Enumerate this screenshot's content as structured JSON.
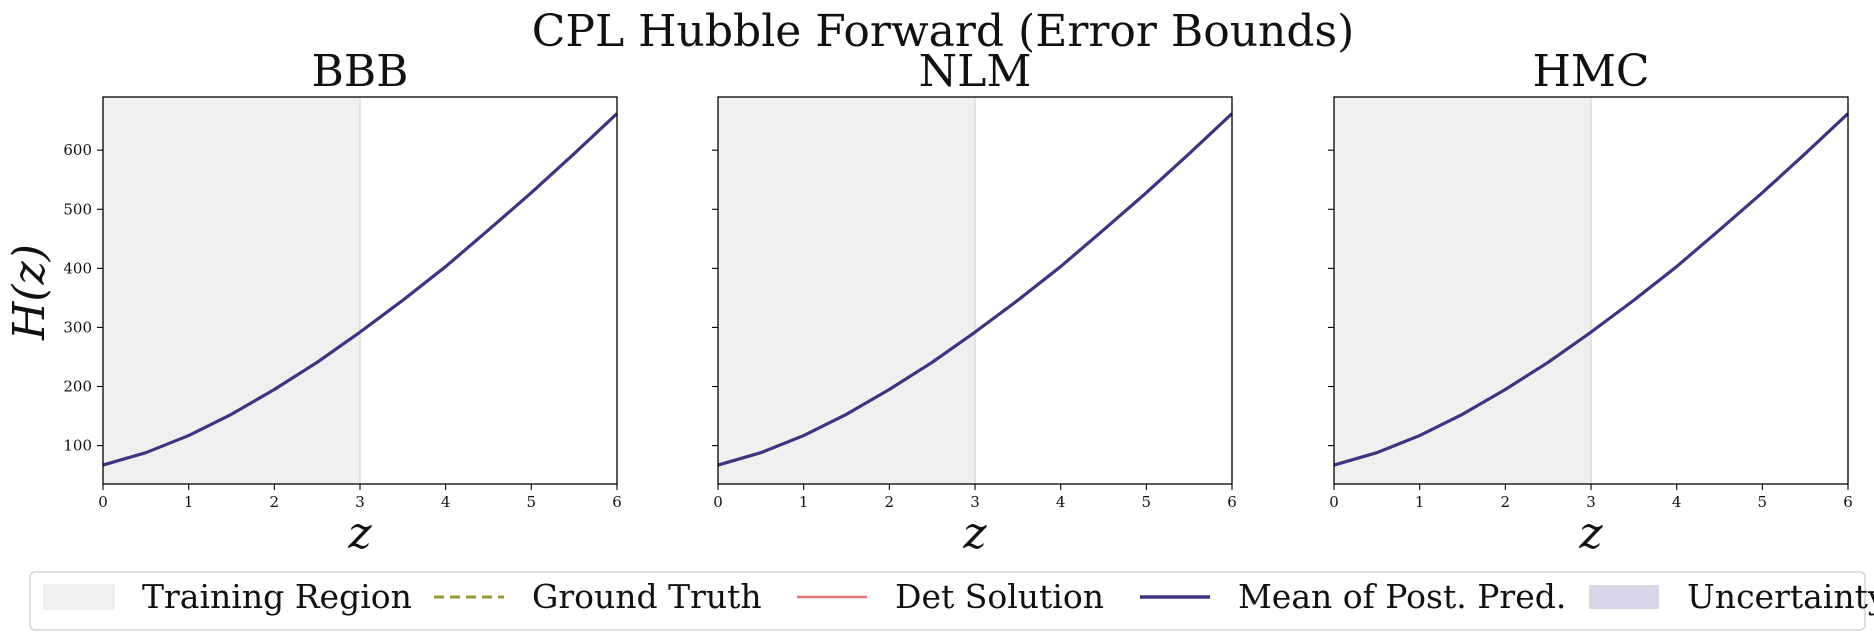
{
  "figure": {
    "title": "CPL Hubble Forward (Error Bounds)",
    "ylabel": "H(z)",
    "xlabel": "z"
  },
  "chart_data": [
    {
      "type": "line",
      "title": "BBB",
      "xlabel": "z",
      "ylabel": "H(z)",
      "xlim": [
        0,
        6
      ],
      "ylim": [
        35,
        690
      ],
      "xticks": [
        0,
        1,
        2,
        3,
        4,
        5,
        6
      ],
      "yticks": [
        100,
        200,
        300,
        400,
        500,
        600
      ],
      "training_region": [
        0,
        3
      ],
      "series": [
        {
          "name": "Mean of Post. Pred.",
          "x": [
            0,
            0.5,
            1,
            1.5,
            2,
            2.5,
            3,
            3.5,
            4,
            4.5,
            5,
            5.5,
            6
          ],
          "values": [
            67,
            88,
            117,
            153,
            195,
            241,
            292,
            346,
            403,
            465,
            528,
            594,
            662
          ]
        }
      ]
    },
    {
      "type": "line",
      "title": "NLM",
      "xlabel": "z",
      "xlim": [
        0,
        6
      ],
      "ylim": [
        35,
        690
      ],
      "xticks": [
        0,
        1,
        2,
        3,
        4,
        5,
        6
      ],
      "yticks": [
        100,
        200,
        300,
        400,
        500,
        600
      ],
      "training_region": [
        0,
        3
      ],
      "series": [
        {
          "name": "Mean of Post. Pred.",
          "x": [
            0,
            0.5,
            1,
            1.5,
            2,
            2.5,
            3,
            3.5,
            4,
            4.5,
            5,
            5.5,
            6
          ],
          "values": [
            67,
            88,
            117,
            153,
            195,
            241,
            292,
            346,
            403,
            465,
            528,
            594,
            662
          ]
        }
      ]
    },
    {
      "type": "line",
      "title": "HMC",
      "xlabel": "z",
      "xlim": [
        0,
        6
      ],
      "ylim": [
        35,
        690
      ],
      "xticks": [
        0,
        1,
        2,
        3,
        4,
        5,
        6
      ],
      "yticks": [
        100,
        200,
        300,
        400,
        500,
        600
      ],
      "training_region": [
        0,
        3
      ],
      "series": [
        {
          "name": "Mean of Post. Pred.",
          "x": [
            0,
            0.5,
            1,
            1.5,
            2,
            2.5,
            3,
            3.5,
            4,
            4.5,
            5,
            5.5,
            6
          ],
          "values": [
            67,
            88,
            117,
            153,
            195,
            241,
            292,
            346,
            403,
            465,
            528,
            594,
            662
          ]
        }
      ]
    }
  ],
  "legend": {
    "placement": "bottom",
    "entries": [
      {
        "label": "Training Region",
        "kind": "patch",
        "color": "#f0f0f0"
      },
      {
        "label": "Ground Truth",
        "kind": "dashed",
        "color": "#9a9a2e"
      },
      {
        "label": "Det Solution",
        "kind": "line",
        "color": "#f07070"
      },
      {
        "label": "Mean of Post. Pred.",
        "kind": "line",
        "color": "#3d3580"
      },
      {
        "label": "Uncertainty",
        "kind": "patch",
        "color": "#d8d6e8"
      }
    ]
  },
  "colors": {
    "training_region": "#f0f0f0",
    "mean": "#3d3580"
  }
}
